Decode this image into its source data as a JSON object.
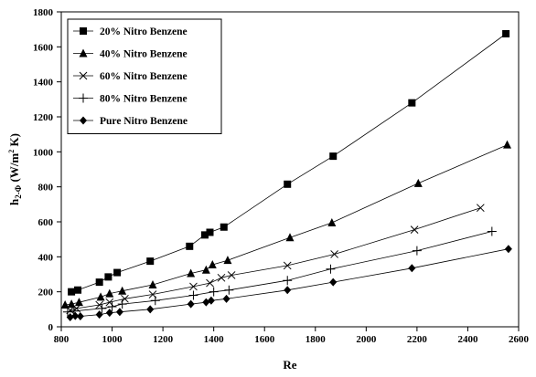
{
  "chart_data": {
    "type": "line",
    "xlabel": "Re",
    "ylabel_main": "h",
    "ylabel_sub": "2-Φ",
    "ylabel_unit_a": " (W/m",
    "ylabel_unit_sup": "2",
    "ylabel_unit_b": " K)",
    "xlim": [
      800,
      2600
    ],
    "ylim": [
      0,
      1800
    ],
    "xticks": [
      "800",
      "1000",
      "1200",
      "1400",
      "1600",
      "1800",
      "2000",
      "2200",
      "2400",
      "2600"
    ],
    "yticks": [
      "0",
      "200",
      "400",
      "600",
      "800",
      "1000",
      "1200",
      "1400",
      "1600",
      "1800"
    ],
    "grid": false,
    "legend_position": "top-left",
    "series": [
      {
        "name": "20% Nitro Benzene",
        "marker": "square",
        "points": [
          [
            840,
            200
          ],
          [
            865,
            210
          ],
          [
            950,
            255
          ],
          [
            985,
            285
          ],
          [
            1020,
            310
          ],
          [
            1150,
            375
          ],
          [
            1305,
            460
          ],
          [
            1365,
            525
          ],
          [
            1385,
            540
          ],
          [
            1440,
            570
          ],
          [
            1690,
            815
          ],
          [
            1870,
            975
          ],
          [
            2180,
            1280
          ],
          [
            2550,
            1675
          ]
        ]
      },
      {
        "name": "40% Nitro Benzene",
        "marker": "triangle",
        "points": [
          [
            815,
            125
          ],
          [
            840,
            130
          ],
          [
            870,
            140
          ],
          [
            955,
            170
          ],
          [
            990,
            190
          ],
          [
            1040,
            205
          ],
          [
            1160,
            240
          ],
          [
            1310,
            305
          ],
          [
            1370,
            325
          ],
          [
            1395,
            355
          ],
          [
            1455,
            380
          ],
          [
            1700,
            510
          ],
          [
            1865,
            595
          ],
          [
            2205,
            820
          ],
          [
            2555,
            1040
          ]
        ]
      },
      {
        "name": "60% Nitro Benzene",
        "marker": "x",
        "points": [
          [
            835,
            95
          ],
          [
            860,
            105
          ],
          [
            950,
            125
          ],
          [
            990,
            140
          ],
          [
            1050,
            160
          ],
          [
            1160,
            185
          ],
          [
            1320,
            230
          ],
          [
            1385,
            250
          ],
          [
            1430,
            280
          ],
          [
            1470,
            295
          ],
          [
            1690,
            350
          ],
          [
            1875,
            415
          ],
          [
            2190,
            555
          ],
          [
            2450,
            680
          ]
        ]
      },
      {
        "name": "80% Nitro Benzene",
        "marker": "plus",
        "points": [
          [
            825,
            85
          ],
          [
            850,
            90
          ],
          [
            960,
            105
          ],
          [
            1000,
            115
          ],
          [
            1040,
            130
          ],
          [
            1170,
            150
          ],
          [
            1320,
            180
          ],
          [
            1400,
            200
          ],
          [
            1460,
            210
          ],
          [
            1690,
            265
          ],
          [
            1860,
            330
          ],
          [
            2200,
            435
          ],
          [
            2495,
            545
          ]
        ]
      },
      {
        "name": "Pure Nitro Benzene",
        "marker": "diamond",
        "points": [
          [
            835,
            55
          ],
          [
            855,
            62
          ],
          [
            875,
            60
          ],
          [
            950,
            70
          ],
          [
            990,
            80
          ],
          [
            1030,
            85
          ],
          [
            1150,
            100
          ],
          [
            1310,
            130
          ],
          [
            1370,
            140
          ],
          [
            1390,
            150
          ],
          [
            1450,
            160
          ],
          [
            1690,
            210
          ],
          [
            1870,
            255
          ],
          [
            2180,
            335
          ],
          [
            2560,
            445
          ]
        ]
      }
    ]
  }
}
